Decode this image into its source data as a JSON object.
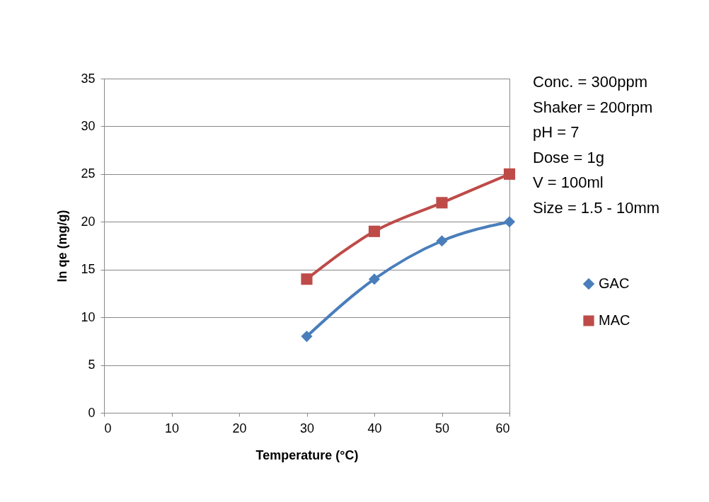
{
  "chart_data": {
    "type": "line",
    "xlabel": "Temperature (°C)",
    "ylabel": "ln qe (mg/g)",
    "x": [
      30,
      40,
      50,
      60
    ],
    "series": [
      {
        "name": "GAC",
        "color": "#4a7ebb",
        "values": [
          8,
          14,
          18,
          20
        ],
        "marker": "diamond"
      },
      {
        "name": "MAC",
        "color": "#be4b48",
        "values": [
          14,
          19,
          22,
          25
        ],
        "marker": "square"
      }
    ],
    "xlim": [
      0,
      60
    ],
    "xticks": [
      0,
      10,
      20,
      30,
      40,
      50,
      60
    ],
    "ylim": [
      0,
      35
    ],
    "yticks": [
      0,
      5,
      10,
      15,
      20,
      25,
      30,
      35
    ],
    "grid": "y",
    "legend": "right",
    "line_style": "solid",
    "annotations": [
      "Conc. = 300ppm",
      "Shaker = 200rpm",
      "pH = 7",
      "Dose = 1g",
      "V = 100ml",
      "Size = 1.5 - 10mm"
    ]
  }
}
